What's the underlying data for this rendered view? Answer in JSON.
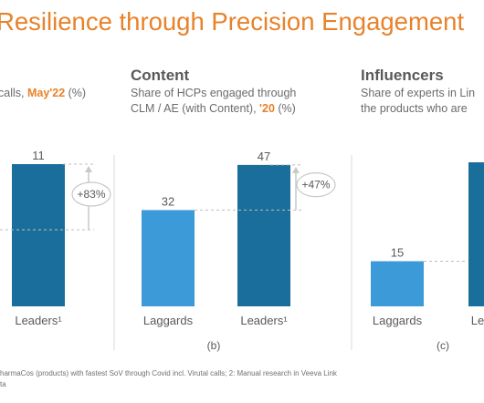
{
  "title": "Resilience through Precision Engagement",
  "panels": [
    {
      "head": "",
      "sub_line1": "",
      "sub_line2_pre": "calls, ",
      "sub_line2_hl": "May'22",
      "sub_line2_post": " (%)",
      "letter": ""
    },
    {
      "head": "Content",
      "sub_line1": "Share of HCPs engaged through",
      "sub_line2_pre": "CLM / AE (with Content), ",
      "sub_line2_hl": "'20",
      "sub_line2_post": " (%)",
      "letter": "(b)"
    },
    {
      "head": "Influencers",
      "sub_line1": "Share of experts in Lin",
      "sub_line2_pre": "the products who are",
      "sub_line2_hl": "",
      "sub_line2_post": "",
      "letter": "(c)"
    }
  ],
  "footnote": {
    "line1": "harmaCos (products) with fastest SoV through Covid incl. Virutal calls; 2: Manual research in Veeva Link",
    "line2": "ta"
  },
  "colors": {
    "laggards": "#3d9ad8",
    "leaders": "#1a6e9b",
    "accent": "#e8822a"
  },
  "chart_data": [
    {
      "type": "bar",
      "categories": [
        "Leaders¹"
      ],
      "series": [
        {
          "values": [
            11
          ]
        }
      ],
      "delta_label": "+83%"
    },
    {
      "type": "bar",
      "categories": [
        "Laggards",
        "Leaders¹"
      ],
      "series": [
        {
          "values": [
            32,
            47
          ]
        }
      ],
      "delta_label": "+47%"
    },
    {
      "type": "bar",
      "categories": [
        "Laggards",
        "Le"
      ],
      "series": [
        {
          "values": [
            15,
            null
          ]
        }
      ]
    }
  ]
}
